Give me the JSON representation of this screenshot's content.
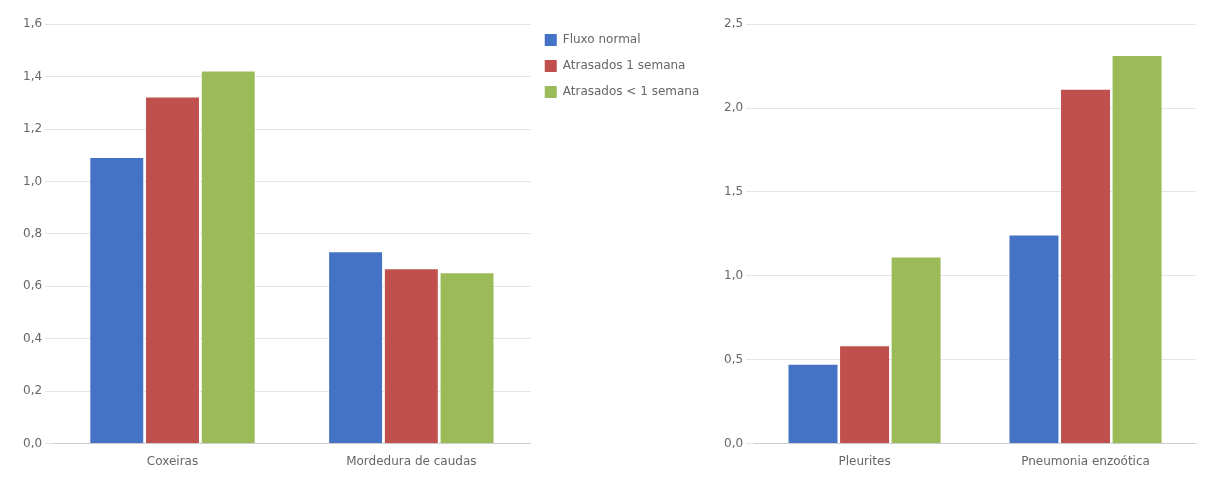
{
  "chart_data": [
    {
      "type": "bar",
      "categories": [
        "Coxeiras",
        "Mordedura de caudas"
      ],
      "series": [
        {
          "name": "Fluxo normal",
          "color": "#4472C4",
          "values": [
            1.09,
            0.73
          ]
        },
        {
          "name": "Atrasados 1 semana",
          "color": "#C0504D",
          "values": [
            1.32,
            0.665
          ]
        },
        {
          "name": "Atrasados < 1 semana",
          "color": "#9BBB59",
          "values": [
            1.42,
            0.65
          ]
        }
      ],
      "ylim": [
        0,
        1.6
      ],
      "yticks": [
        {
          "value": 0.0,
          "label": "0,0"
        },
        {
          "value": 0.2,
          "label": "0,2"
        },
        {
          "value": 0.4,
          "label": "0,4"
        },
        {
          "value": 0.6,
          "label": "0,6"
        },
        {
          "value": 0.8,
          "label": "0,8"
        },
        {
          "value": 1.0,
          "label": "1,0"
        },
        {
          "value": 1.2,
          "label": "1,2"
        },
        {
          "value": 1.4,
          "label": "1,4"
        },
        {
          "value": 1.6,
          "label": "1,6"
        }
      ],
      "grid": true,
      "legend": "upper right"
    },
    {
      "type": "bar",
      "categories": [
        "Pleurites",
        "Pneumonia enzoótica"
      ],
      "series": [
        {
          "name": "Fluxo normal",
          "color": "#4472C4",
          "values": [
            0.47,
            1.24
          ]
        },
        {
          "name": "Atrasados 1 semana",
          "color": "#C0504D",
          "values": [
            0.58,
            2.11
          ]
        },
        {
          "name": "Atrasados < 1 semana",
          "color": "#9BBB59",
          "values": [
            1.11,
            2.31
          ]
        }
      ],
      "ylim": [
        0,
        2.5
      ],
      "yticks": [
        {
          "value": 0.0,
          "label": "0,0"
        },
        {
          "value": 0.5,
          "label": "0,5"
        },
        {
          "value": 1.0,
          "label": "1,0"
        },
        {
          "value": 1.5,
          "label": "1,5"
        },
        {
          "value": 2.0,
          "label": "2,0"
        },
        {
          "value": 2.5,
          "label": "2,5"
        }
      ],
      "grid": true
    }
  ]
}
